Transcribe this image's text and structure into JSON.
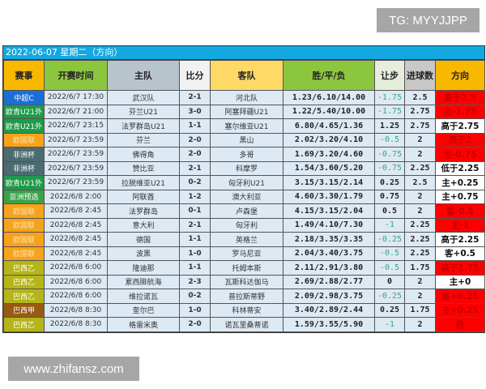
{
  "watermark_top": "TG: MYYJJPP",
  "watermark_bottom": "www.zhifansz.com",
  "title": "2022-06-07 星期二（方向）",
  "headers": [
    {
      "label": "赛事",
      "color": "#f9b800"
    },
    {
      "label": "开赛时间",
      "color": "#8cc63f"
    },
    {
      "label": "主队",
      "color": "#b8c4cc"
    },
    {
      "label": "比分",
      "color": "#f2f2f2"
    },
    {
      "label": "客队",
      "color": "#ffd966"
    },
    {
      "label": "胜/平/负",
      "color": "#8cc63f"
    },
    {
      "label": "让步",
      "color": "#e6eedb"
    },
    {
      "label": "进球数",
      "color": "#c8c8c8"
    },
    {
      "label": "方向",
      "color": "#f9b800"
    }
  ],
  "league_colors": {
    "中超C": "#1a6fd6",
    "欧青U21外": "#1f9a4a",
    "欧国联": "#f7a21b",
    "非洲杯": "#4b6b70",
    "亚洲预选": "#3aa14a",
    "巴西乙": "#b5b51a",
    "巴西甲": "#985a12"
  },
  "direction_hit_color": "#ff0000",
  "rows": [
    {
      "league": "中超C",
      "time": "2022/6/7 17:30",
      "home": "武汉队",
      "score": "2-1",
      "away": "河北队",
      "odds": "1.23/6.10/14.00",
      "handicap": "-1.75",
      "goals": "2.5",
      "direction": "高于2.5",
      "hit": true
    },
    {
      "league": "欧青U21外",
      "time": "2022/6/7 21:00",
      "home": "芬兰U21",
      "score": "3-0",
      "away": "阿塞拜疆U21",
      "odds": "1.22/5.40/10.00",
      "handicap": "-1.75",
      "goals": "2.75",
      "direction": "主-1.75",
      "hit": true
    },
    {
      "league": "欧青U21外",
      "time": "2022/6/7 23:15",
      "home": "法罗群岛U21",
      "score": "1-1",
      "away": "塞尔维亚U21",
      "odds": "6.80/4.65/1.36",
      "handicap": "1.25",
      "goals": "2.75",
      "direction": "高于2.75",
      "hit": false
    },
    {
      "league": "欧国联",
      "time": "2022/6/7 23:59",
      "home": "芬兰",
      "score": "2-0",
      "away": "黑山",
      "odds": "2.02/3.20/4.10",
      "handicap": "-0.5",
      "goals": "2",
      "direction": "高于2",
      "hit": true
    },
    {
      "league": "非洲杯",
      "time": "2022/6/7 23:59",
      "home": "佛得角",
      "score": "2-0",
      "away": "多哥",
      "odds": "1.69/3.20/4.60",
      "handicap": "-0.75",
      "goals": "2",
      "direction": "主-0.75",
      "hit": true
    },
    {
      "league": "非洲杯",
      "time": "2022/6/7 23:59",
      "home": "赞比亚",
      "score": "2-1",
      "away": "科摩罗",
      "odds": "1.54/3.60/5.20",
      "handicap": "-0.75",
      "goals": "2.25",
      "direction": "低于2.25",
      "hit": false
    },
    {
      "league": "欧青U21外",
      "time": "2022/6/7 23:59",
      "home": "拉脱维亚U21",
      "score": "0-2",
      "away": "匈牙利U21",
      "odds": "3.15/3.15/2.14",
      "handicap": "0.25",
      "goals": "2.5",
      "direction": "主+0.25",
      "hit": false
    },
    {
      "league": "亚洲预选",
      "time": "2022/6/8 2:00",
      "home": "阿联酋",
      "score": "1-2",
      "away": "澳大利亚",
      "odds": "4.60/3.30/1.79",
      "handicap": "0.75",
      "goals": "2",
      "direction": "主+0.75",
      "hit": false
    },
    {
      "league": "欧国联",
      "time": "2022/6/8 2:45",
      "home": "法罗群岛",
      "score": "0-1",
      "away": "卢森堡",
      "odds": "4.15/3.15/2.04",
      "handicap": "0.5",
      "goals": "2",
      "direction": "客-0.5",
      "hit": true
    },
    {
      "league": "欧国联",
      "time": "2022/6/8 2:45",
      "home": "意大利",
      "score": "2-1",
      "away": "匈牙利",
      "odds": "1.49/4.10/7.30",
      "handicap": "-1",
      "goals": "2.25",
      "direction": "主-1",
      "hit": true
    },
    {
      "league": "欧国联",
      "time": "2022/6/8 2:45",
      "home": "德国",
      "score": "1-1",
      "away": "英格兰",
      "odds": "2.18/3.35/3.35",
      "handicap": "-0.25",
      "goals": "2.25",
      "direction": "高于2.25",
      "hit": false
    },
    {
      "league": "欧国联",
      "time": "2022/6/8 2:45",
      "home": "波黑",
      "score": "1-0",
      "away": "罗马尼亚",
      "odds": "2.04/3.40/3.75",
      "handicap": "-0.5",
      "goals": "2.25",
      "direction": "客+0.5",
      "hit": false
    },
    {
      "league": "巴西乙",
      "time": "2022/6/8 6:00",
      "home": "隆迪那",
      "score": "1-1",
      "away": "托姆本斯",
      "odds": "2.11/2.91/3.80",
      "handicap": "-0.5",
      "goals": "1.75",
      "direction": "高于1.75",
      "hit": true
    },
    {
      "league": "巴西乙",
      "time": "2022/6/8 6:00",
      "home": "累西腓航海",
      "score": "2-3",
      "away": "瓦斯科达伽马",
      "odds": "2.69/2.88/2.77",
      "handicap": "0",
      "goals": "2",
      "direction": "主+0",
      "hit": false
    },
    {
      "league": "巴西乙",
      "time": "2022/6/8 6:00",
      "home": "维拉诺瓦",
      "score": "0-2",
      "away": "普拉斯蒂野",
      "odds": "2.09/2.98/3.75",
      "handicap": "-0.25",
      "goals": "2",
      "direction": "客+0.25",
      "hit": true
    },
    {
      "league": "巴西甲",
      "time": "2022/6/8 8:30",
      "home": "奎尔巴",
      "score": "1-0",
      "away": "科林蒂安",
      "odds": "3.40/2.89/2.44",
      "handicap": "0.25",
      "goals": "1.75",
      "direction": "主+0.25",
      "hit": true
    },
    {
      "league": "巴西乙",
      "time": "2022/6/8 8:30",
      "home": "格雷米奥",
      "score": "2-0",
      "away": "诺瓦里桑蒂诺",
      "odds": "1.59/3.55/5.90",
      "handicap": "-1",
      "goals": "2",
      "direction": "胜",
      "hit": true
    }
  ]
}
